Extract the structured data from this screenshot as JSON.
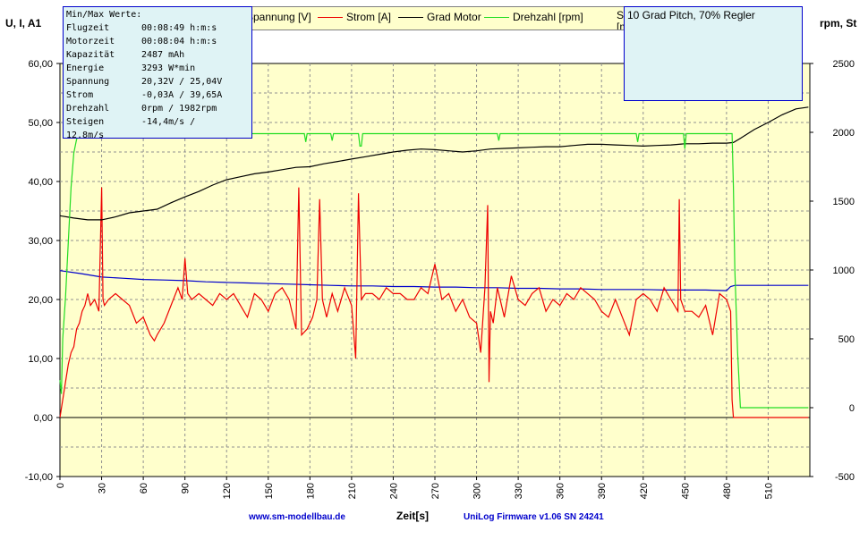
{
  "chart_data": {
    "type": "line",
    "ylabel_left": "U, I, A1",
    "ylabel_right": "rpm, St",
    "xlabel": "Zeit[s]",
    "x_ticks": [
      0,
      30,
      60,
      90,
      120,
      150,
      180,
      210,
      240,
      270,
      300,
      330,
      360,
      390,
      420,
      450,
      480,
      510
    ],
    "xlim": [
      0,
      540
    ],
    "ylim_left": [
      -10,
      60
    ],
    "y_ticks_left": [
      "-10,00",
      "0,00",
      "10,00",
      "20,00",
      "30,00",
      "40,00",
      "50,00",
      "60,00"
    ],
    "ylim_right": [
      -500,
      2500
    ],
    "y_ticks_right": [
      "-500",
      "0",
      "500",
      "1000",
      "1500",
      "2000",
      "2500"
    ],
    "grid": true,
    "series": [
      {
        "name": "Spannung [V]",
        "color": "#0000cc",
        "axis": "left",
        "x": [
          0,
          15,
          30,
          45,
          60,
          75,
          90,
          105,
          120,
          135,
          150,
          165,
          180,
          195,
          210,
          225,
          240,
          255,
          270,
          285,
          300,
          315,
          330,
          345,
          360,
          375,
          390,
          405,
          420,
          435,
          450,
          465,
          480,
          483,
          486,
          500,
          520,
          539
        ],
        "y": [
          24.9,
          24.4,
          23.8,
          23.6,
          23.4,
          23.3,
          23.2,
          23.0,
          22.9,
          22.8,
          22.7,
          22.6,
          22.5,
          22.4,
          22.3,
          22.3,
          22.2,
          22.2,
          22.1,
          22.1,
          22.0,
          22.0,
          21.9,
          21.9,
          21.8,
          21.8,
          21.7,
          21.7,
          21.7,
          21.6,
          21.6,
          21.6,
          21.5,
          22.2,
          22.4,
          22.4,
          22.4,
          22.4
        ]
      },
      {
        "name": "Strom [A]",
        "color": "#ee0000",
        "axis": "left",
        "x": [
          0,
          2,
          4,
          6,
          8,
          10,
          12,
          14,
          16,
          18,
          20,
          22,
          25,
          28,
          30,
          31,
          32,
          35,
          40,
          45,
          50,
          55,
          60,
          65,
          68,
          70,
          75,
          80,
          85,
          88,
          90,
          92,
          95,
          100,
          105,
          110,
          115,
          120,
          125,
          130,
          135,
          140,
          145,
          150,
          155,
          160,
          165,
          170,
          172,
          174,
          178,
          182,
          185,
          187,
          189,
          192,
          196,
          200,
          205,
          210,
          213,
          215,
          217,
          220,
          225,
          230,
          235,
          240,
          245,
          250,
          255,
          260,
          265,
          270,
          275,
          280,
          285,
          290,
          295,
          300,
          303,
          306,
          308,
          309,
          310,
          312,
          315,
          320,
          325,
          330,
          335,
          340,
          345,
          350,
          355,
          360,
          365,
          370,
          375,
          380,
          385,
          390,
          395,
          400,
          405,
          410,
          415,
          420,
          425,
          430,
          435,
          440,
          445,
          446,
          447,
          450,
          455,
          460,
          465,
          470,
          475,
          480,
          483,
          484,
          485,
          486,
          490,
          500,
          520,
          539
        ],
        "y": [
          0,
          3,
          6,
          9,
          11,
          12,
          15,
          16,
          18,
          19,
          21,
          19,
          20,
          18,
          39,
          20,
          19,
          20,
          21,
          20,
          19,
          16,
          17,
          14,
          13,
          14,
          16,
          19,
          22,
          20,
          27,
          21,
          20,
          21,
          20,
          19,
          21,
          20,
          21,
          19,
          17,
          21,
          20,
          18,
          21,
          22,
          20,
          15,
          39,
          14,
          15,
          17,
          20,
          37,
          20,
          17,
          21,
          18,
          22,
          19,
          10,
          38,
          20,
          21,
          21,
          20,
          22,
          21,
          21,
          20,
          20,
          22,
          21,
          26,
          20,
          21,
          18,
          20,
          17,
          16,
          11,
          22,
          36,
          6,
          18,
          16,
          22,
          17,
          24,
          20,
          19,
          21,
          22,
          18,
          20,
          19,
          21,
          20,
          22,
          21,
          20,
          18,
          17,
          20,
          17,
          14,
          20,
          21,
          20,
          18,
          22,
          20,
          18,
          37,
          20,
          18,
          18,
          17,
          19,
          14,
          21,
          20,
          18,
          3,
          0,
          0,
          0,
          0,
          0,
          0
        ]
      },
      {
        "name": "Grad Motor",
        "color": "#000000",
        "axis": "left",
        "x": [
          0,
          10,
          20,
          30,
          40,
          50,
          60,
          70,
          80,
          90,
          100,
          110,
          120,
          130,
          140,
          150,
          160,
          170,
          180,
          190,
          200,
          210,
          220,
          230,
          240,
          250,
          260,
          270,
          280,
          290,
          300,
          310,
          320,
          330,
          340,
          350,
          360,
          370,
          380,
          390,
          400,
          410,
          420,
          430,
          440,
          450,
          460,
          470,
          480,
          485,
          490,
          500,
          510,
          520,
          530,
          539
        ],
        "y": [
          34.2,
          33.8,
          33.5,
          33.5,
          34.0,
          34.7,
          35.0,
          35.3,
          36.4,
          37.4,
          38.3,
          39.4,
          40.3,
          40.8,
          41.3,
          41.6,
          42.0,
          42.4,
          42.5,
          43.0,
          43.4,
          43.8,
          44.2,
          44.6,
          45.0,
          45.3,
          45.5,
          45.4,
          45.2,
          45.0,
          45.2,
          45.5,
          45.6,
          45.7,
          45.8,
          45.9,
          45.9,
          46.1,
          46.3,
          46.3,
          46.2,
          46.1,
          46.0,
          46.1,
          46.2,
          46.4,
          46.4,
          46.5,
          46.5,
          46.6,
          47.3,
          48.8,
          50.0,
          51.3,
          52.3,
          52.6
        ]
      },
      {
        "name": "Drehzahl [rpm]",
        "color": "#22dd22",
        "axis": "right",
        "x": [
          0,
          1,
          2,
          4,
          6,
          8,
          10,
          12,
          14,
          16,
          20,
          40,
          80,
          120,
          160,
          176,
          177,
          178,
          195,
          196,
          197,
          215,
          216,
          217,
          218,
          230,
          300,
          315,
          316,
          317,
          330,
          390,
          415,
          416,
          417,
          440,
          449,
          450,
          451,
          460,
          480,
          484,
          485,
          486,
          488,
          490,
          495,
          539
        ],
        "y": [
          200,
          100,
          500,
          800,
          1200,
          1600,
          1850,
          1950,
          1990,
          1990,
          1990,
          1990,
          1990,
          1990,
          1990,
          1990,
          1930,
          1990,
          1990,
          1940,
          1990,
          1990,
          1900,
          1900,
          1990,
          1990,
          1990,
          1990,
          1940,
          1990,
          1990,
          1990,
          1990,
          1930,
          1990,
          1990,
          1990,
          1880,
          1990,
          1990,
          1990,
          1990,
          1600,
          1000,
          400,
          0,
          0,
          0
        ]
      }
    ]
  },
  "infobox": {
    "title": "Min/Max Werte:",
    "rows": [
      {
        "k": "Flugzeit",
        "v": "00:08:49 h:m:s"
      },
      {
        "k": "Motorzeit",
        "v": "00:08:04 h:m:s"
      },
      {
        "k": "Kapazität",
        "v": "2487 mAh"
      },
      {
        "k": "Energie",
        "v": "3293 W*min"
      },
      {
        "k": "Spannung",
        "v": "20,32V / 25,04V"
      },
      {
        "k": "Strom",
        "v": "-0,03A / 39,65A"
      },
      {
        "k": "Drehzahl",
        "v": "0rpm / 1982rpm"
      },
      {
        "k": "Steigen",
        "v": "-14,4m/s /"
      }
    ],
    "last": "12,8m/s"
  },
  "legend": {
    "items": [
      "Spannung [V]",
      "Strom [A]",
      "Grad Motor",
      "Drehzahl [rpm]"
    ],
    "extra": "Steig",
    "extra_unit": "[m/s]"
  },
  "note": "10 Grad Pitch, 70% Regler",
  "footer": {
    "left": "www.sm-modellbau.de",
    "right": "UniLog Firmware v1.06 SN 24241"
  }
}
